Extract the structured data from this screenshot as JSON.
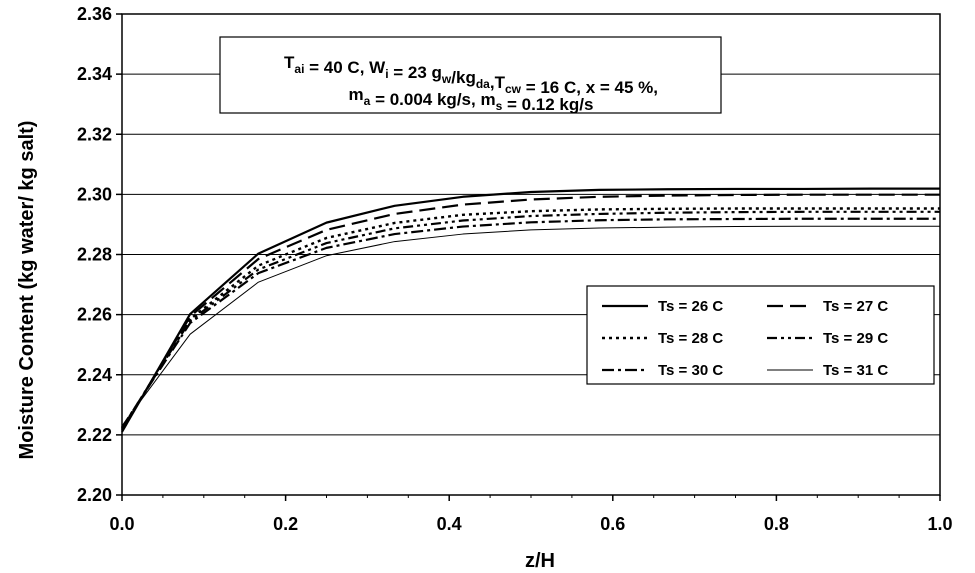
{
  "chart_data": {
    "type": "line",
    "xlabel": "z/H",
    "ylabel": "Moisture Content (kg water/ kg salt)",
    "xlim": [
      0.0,
      1.0
    ],
    "ylim": [
      2.2,
      2.36
    ],
    "x_ticks": [
      "0.0",
      "0.2",
      "0.4",
      "0.6",
      "0.8",
      "1.0"
    ],
    "y_ticks": [
      "2.20",
      "2.22",
      "2.24",
      "2.26",
      "2.28",
      "2.30",
      "2.32",
      "2.34",
      "2.36"
    ],
    "grid": "horizontal",
    "legend_position": "center-right",
    "annotation": {
      "line1": [
        {
          "t": "T"
        },
        {
          "t": "ai",
          "sub": true
        },
        {
          "t": " = 40 C, W"
        },
        {
          "t": "i",
          "sub": true
        },
        {
          "t": " = 23 g"
        },
        {
          "t": "w",
          "sub": true
        },
        {
          "t": "/kg"
        },
        {
          "t": "da",
          "sub": true
        },
        {
          "t": ",T"
        },
        {
          "t": "cw",
          "sub": true
        },
        {
          "t": " = 16 C, x = 45 %,"
        }
      ],
      "line2": [
        {
          "t": "m"
        },
        {
          "t": "a",
          "sub": true
        },
        {
          "t": " = 0.004 kg/s,  m"
        },
        {
          "t": "s",
          "sub": true
        },
        {
          "t": " = 0.12 kg/s"
        }
      ]
    },
    "x": [
      0.0,
      0.0833,
      0.1667,
      0.25,
      0.3333,
      0.4167,
      0.5,
      0.5833,
      0.6667,
      0.75,
      0.8333,
      0.9167,
      1.0
    ],
    "series": [
      {
        "name": "Ts = 26 C",
        "style": "solid",
        "width": 2.2,
        "values": [
          2.221,
          2.2602,
          2.2803,
          2.2906,
          2.2962,
          2.2992,
          2.3008,
          2.3015,
          2.3017,
          2.3018,
          2.3018,
          2.3019,
          2.3019
        ]
      },
      {
        "name": "Ts = 27 C",
        "style": "longdash",
        "width": 2.2,
        "values": [
          2.2215,
          2.2594,
          2.2785,
          2.2882,
          2.2935,
          2.2966,
          2.2983,
          2.2992,
          2.2996,
          2.2998,
          2.2999,
          2.2999,
          2.2999
        ]
      },
      {
        "name": "Ts = 28 C",
        "style": "dot",
        "width": 2.4,
        "values": [
          2.222,
          2.2585,
          2.2763,
          2.2855,
          2.2905,
          2.2932,
          2.2944,
          2.295,
          2.2952,
          2.2953,
          2.2953,
          2.2953,
          2.2953
        ]
      },
      {
        "name": "Ts = 29 C",
        "style": "dashdotdot",
        "width": 2.2,
        "values": [
          2.2222,
          2.258,
          2.275,
          2.2838,
          2.2887,
          2.2913,
          2.2928,
          2.2935,
          2.2939,
          2.2941,
          2.2942,
          2.2942,
          2.2942
        ]
      },
      {
        "name": "Ts = 30 C",
        "style": "dashdot",
        "width": 2.2,
        "values": [
          2.2225,
          2.2572,
          2.2738,
          2.2822,
          2.2868,
          2.2893,
          2.2907,
          2.2914,
          2.2917,
          2.2918,
          2.2919,
          2.2919,
          2.2919
        ]
      },
      {
        "name": "Ts = 31 C",
        "style": "solid",
        "width": 1.0,
        "values": [
          2.223,
          2.2535,
          2.2708,
          2.2796,
          2.2843,
          2.2868,
          2.2882,
          2.2888,
          2.2891,
          2.2893,
          2.2894,
          2.2894,
          2.2894
        ]
      }
    ]
  }
}
